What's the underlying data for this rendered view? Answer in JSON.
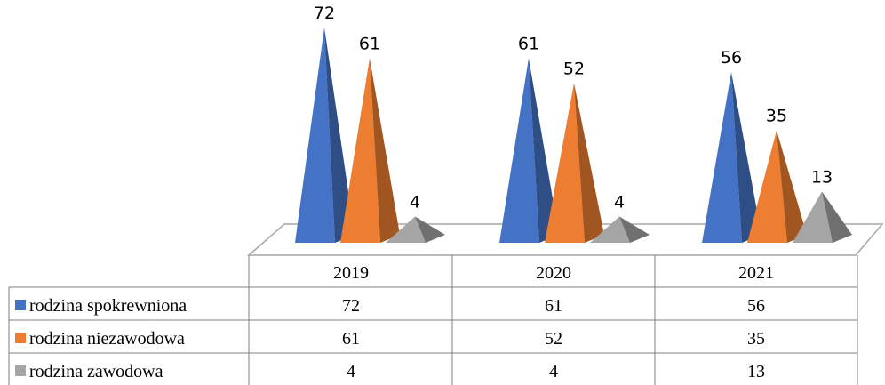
{
  "chart_data": {
    "type": "bar",
    "style": "3d-pyramid-with-data-table",
    "categories": [
      "2019",
      "2020",
      "2021"
    ],
    "series": [
      {
        "name": "rodzina spokrewniona",
        "values": [
          72,
          61,
          56
        ],
        "color": "#4472C4"
      },
      {
        "name": "rodzina niezawodowa",
        "values": [
          61,
          52,
          35
        ],
        "color": "#ED7D31"
      },
      {
        "name": "rodzina zawodowa",
        "values": [
          4,
          4,
          13
        ],
        "color": "#A5A5A5"
      }
    ],
    "ylim": [
      0,
      72
    ],
    "grid": false,
    "data_labels": true
  }
}
